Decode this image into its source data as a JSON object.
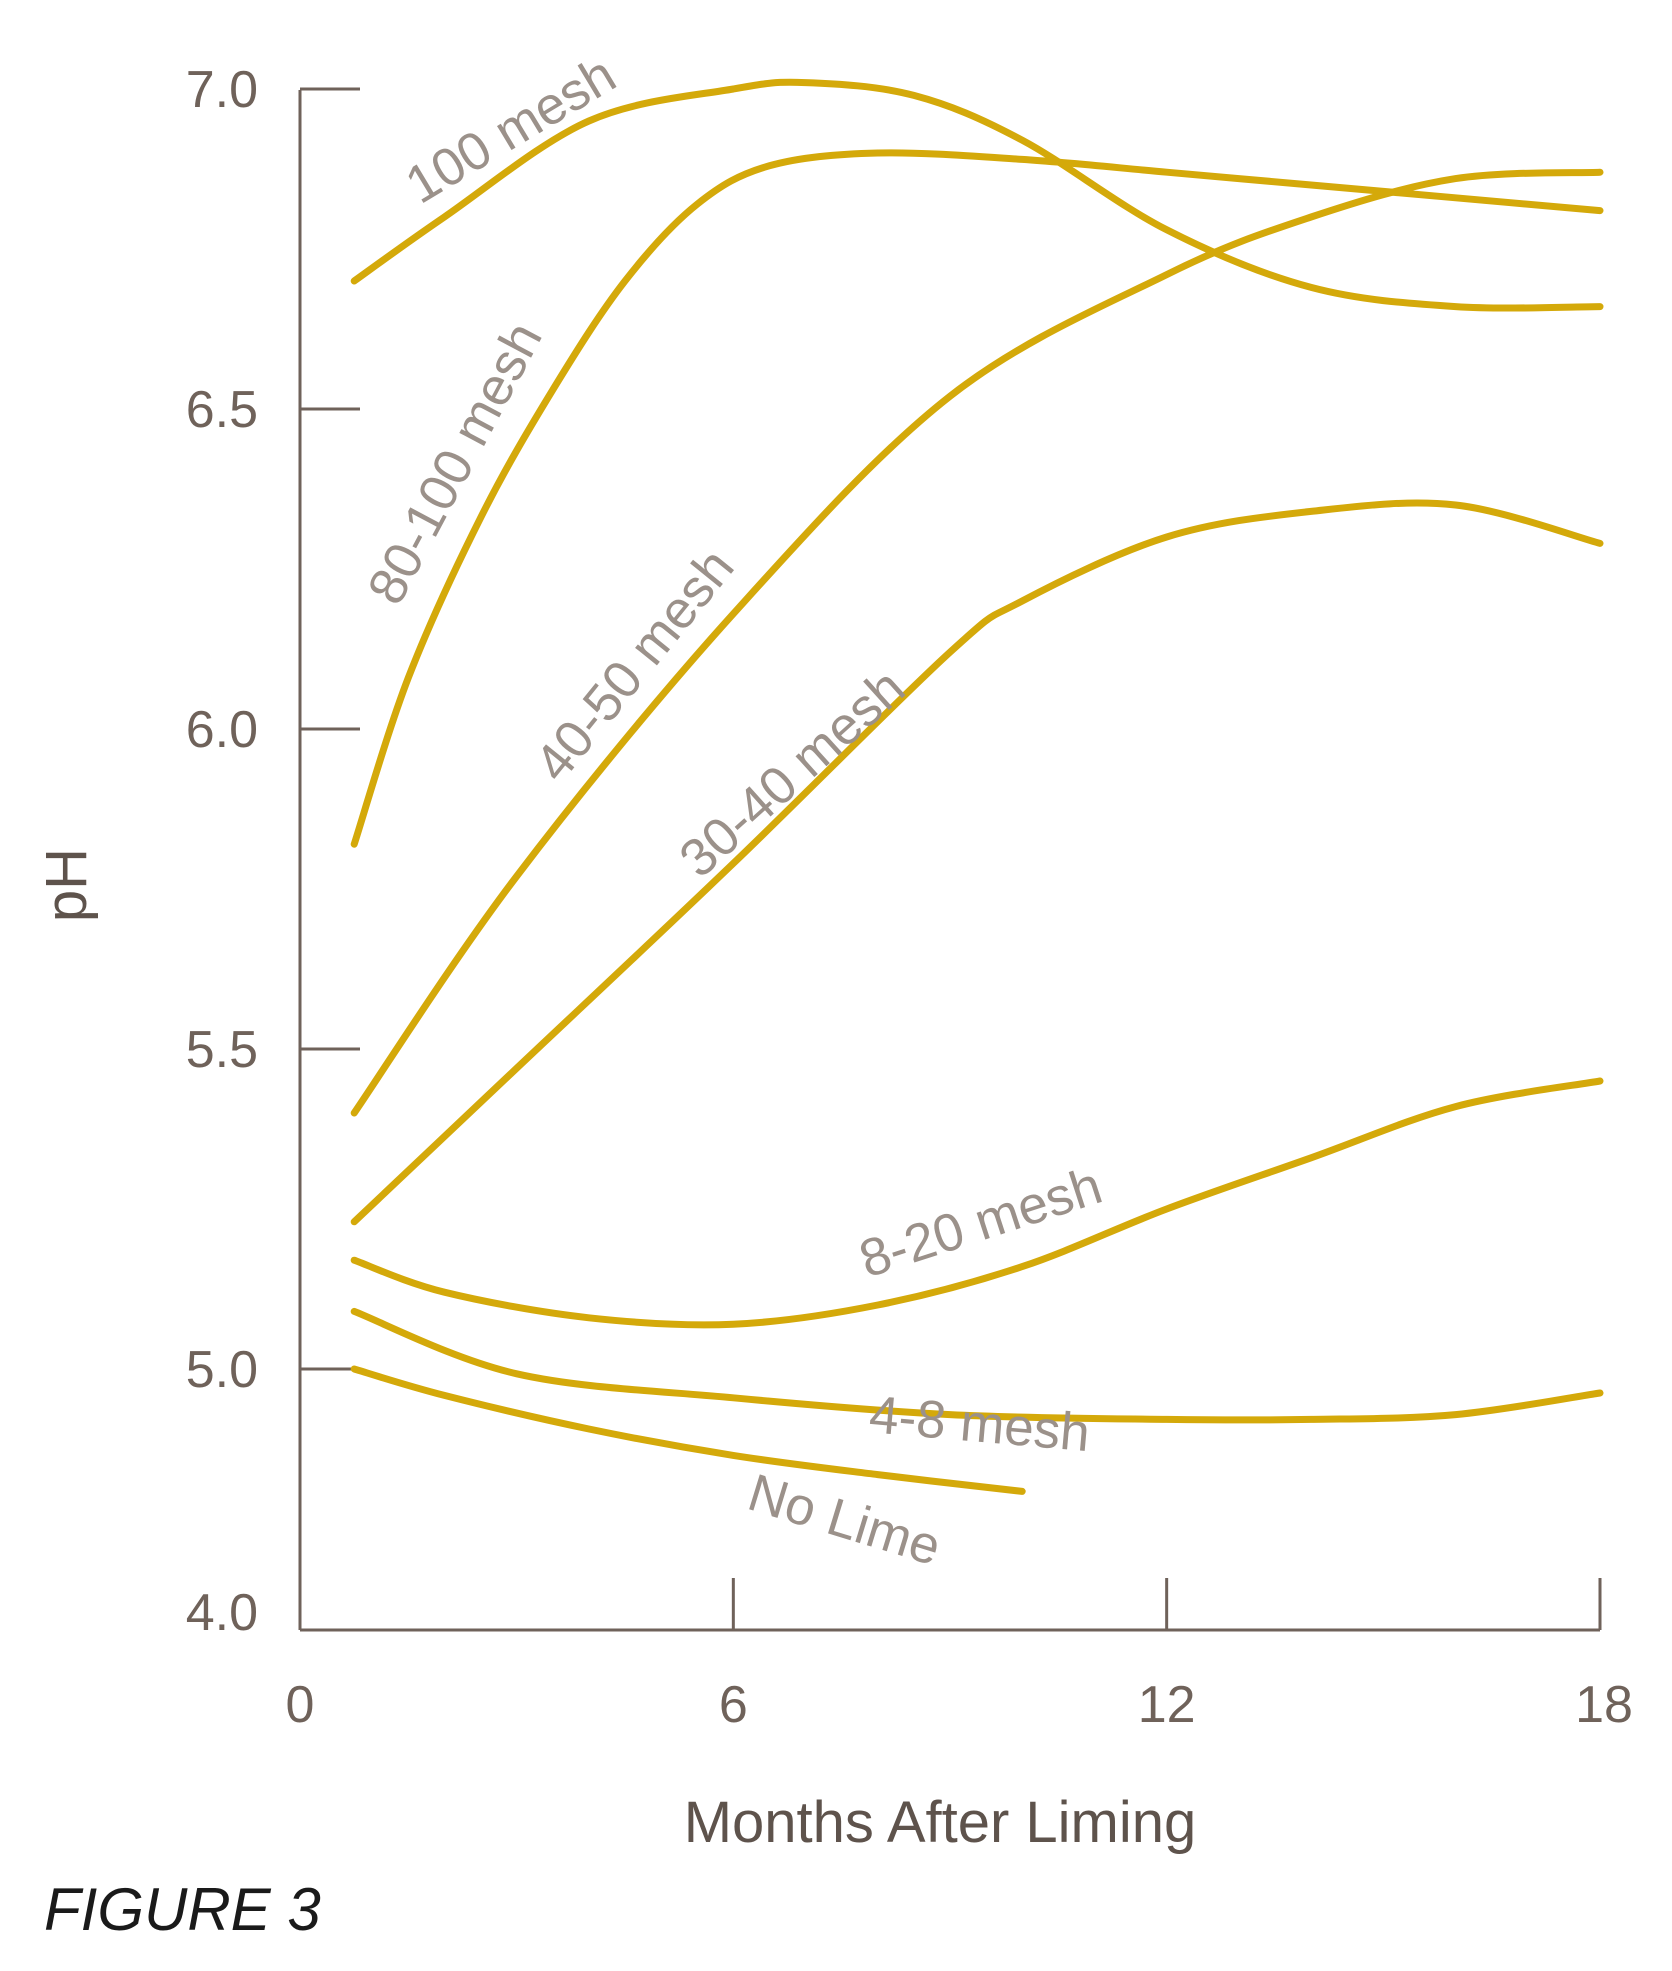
{
  "chart_data": {
    "type": "line",
    "xlabel": "Months After Liming",
    "ylabel": "pH",
    "xlim": [
      0,
      18
    ],
    "ylim": [
      4.0,
      7.0
    ],
    "x_ticks": [
      "0",
      "6",
      "12",
      "18"
    ],
    "y_ticks": [
      "7.0",
      "6.5",
      "6.0",
      "5.5",
      "5.0",
      "4.0"
    ],
    "figure_label": "FIGURE 3",
    "series": [
      {
        "name": "100 mesh",
        "x": [
          0.75,
          2,
          4,
          6,
          7,
          8.5,
          10,
          12,
          14,
          16,
          18
        ],
        "y": [
          6.7,
          6.8,
          6.95,
          7.0,
          7.01,
          6.99,
          6.92,
          6.78,
          6.69,
          6.66,
          6.66
        ]
      },
      {
        "name": "80-100 mesh",
        "x": [
          0.75,
          1.5,
          2.5,
          3.5,
          4.5,
          5.5,
          6.5,
          8,
          10,
          12,
          14,
          16,
          18
        ],
        "y": [
          5.82,
          6.08,
          6.33,
          6.53,
          6.7,
          6.82,
          6.88,
          6.9,
          6.89,
          6.87,
          6.85,
          6.83,
          6.81
        ]
      },
      {
        "name": "40-50 mesh",
        "x": [
          0.75,
          3,
          6,
          9,
          12,
          14,
          16,
          18
        ],
        "y": [
          5.4,
          5.77,
          6.18,
          6.52,
          6.71,
          6.8,
          6.86,
          6.87
        ]
      },
      {
        "name": "30-40 mesh",
        "x": [
          0.75,
          3,
          6,
          9,
          10,
          12,
          14,
          16,
          18
        ],
        "y": [
          5.23,
          5.47,
          5.79,
          6.12,
          6.2,
          6.3,
          6.34,
          6.35,
          6.29
        ]
      },
      {
        "name": "8-20 mesh",
        "x": [
          0.75,
          2,
          4,
          6,
          8,
          10,
          12,
          14,
          16,
          18
        ],
        "y": [
          5.17,
          5.12,
          5.08,
          5.07,
          5.1,
          5.16,
          5.25,
          5.33,
          5.41,
          5.45
        ]
      },
      {
        "name": "4-8 mesh",
        "x": [
          0.75,
          3,
          6,
          9,
          12,
          14,
          16,
          18
        ],
        "y": [
          5.09,
          4.98,
          4.88,
          4.81,
          4.79,
          4.79,
          4.81,
          4.9
        ]
      },
      {
        "name": "No Lime",
        "x": [
          0.75,
          2,
          4,
          6,
          8,
          10
        ],
        "y": [
          5.0,
          4.89,
          4.75,
          4.64,
          4.56,
          4.49
        ]
      }
    ]
  }
}
